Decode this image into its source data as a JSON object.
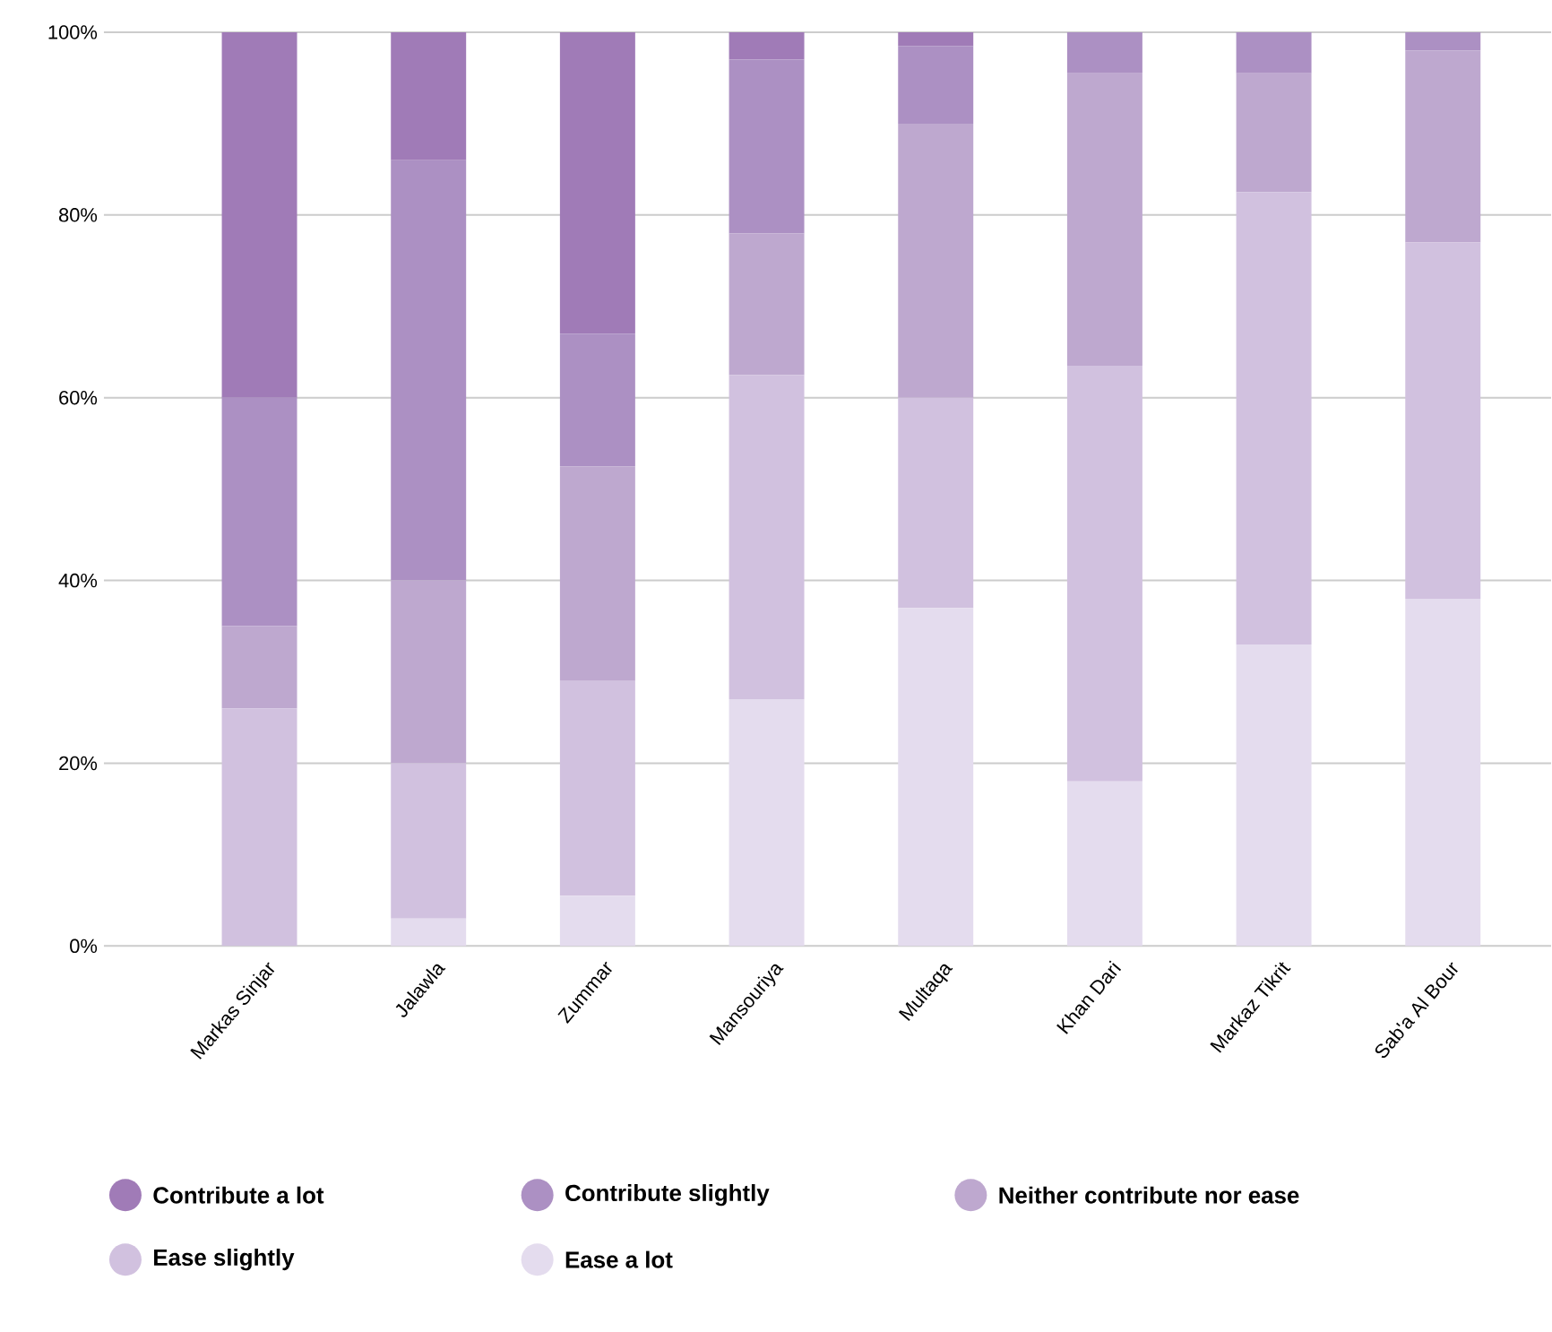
{
  "chart_data": {
    "type": "bar",
    "stacked": true,
    "categories": [
      "Markas Sinjar",
      "Jalawla",
      "Zummar",
      "Mansouriya",
      "Multaqa",
      "Khan Dari",
      "Markaz Tikrit",
      "Sab'a Al Bour"
    ],
    "series": [
      {
        "name": "Ease a lot",
        "color": "#e4dcee",
        "values": [
          0,
          3,
          5.5,
          27,
          37,
          18,
          33,
          38
        ]
      },
      {
        "name": "Ease slightly",
        "color": "#d1c1df",
        "values": [
          26,
          17,
          23.5,
          35.5,
          23,
          45.5,
          49.5,
          39
        ]
      },
      {
        "name": "Neither contribute nor ease",
        "color": "#bea8cf",
        "values": [
          9,
          20,
          23.5,
          15.5,
          30,
          32,
          13,
          21
        ]
      },
      {
        "name": "Contribute slightly",
        "color": "#ac90c3",
        "values": [
          25,
          46,
          14.5,
          19,
          8.5,
          4.5,
          4.5,
          2
        ]
      },
      {
        "name": "Contribute a lot",
        "color": "#a07bb7",
        "values": [
          40,
          14,
          33,
          3,
          1.5,
          0,
          0,
          0
        ]
      }
    ],
    "ylim": [
      0,
      100
    ],
    "yticks": [
      {
        "value": 0,
        "label": "0%"
      },
      {
        "value": 20,
        "label": "20%"
      },
      {
        "value": 40,
        "label": "40%"
      },
      {
        "value": 60,
        "label": "60%"
      },
      {
        "value": 80,
        "label": "80%"
      },
      {
        "value": 100,
        "label": "100%"
      }
    ],
    "grid": "y",
    "legend": "bottom"
  }
}
